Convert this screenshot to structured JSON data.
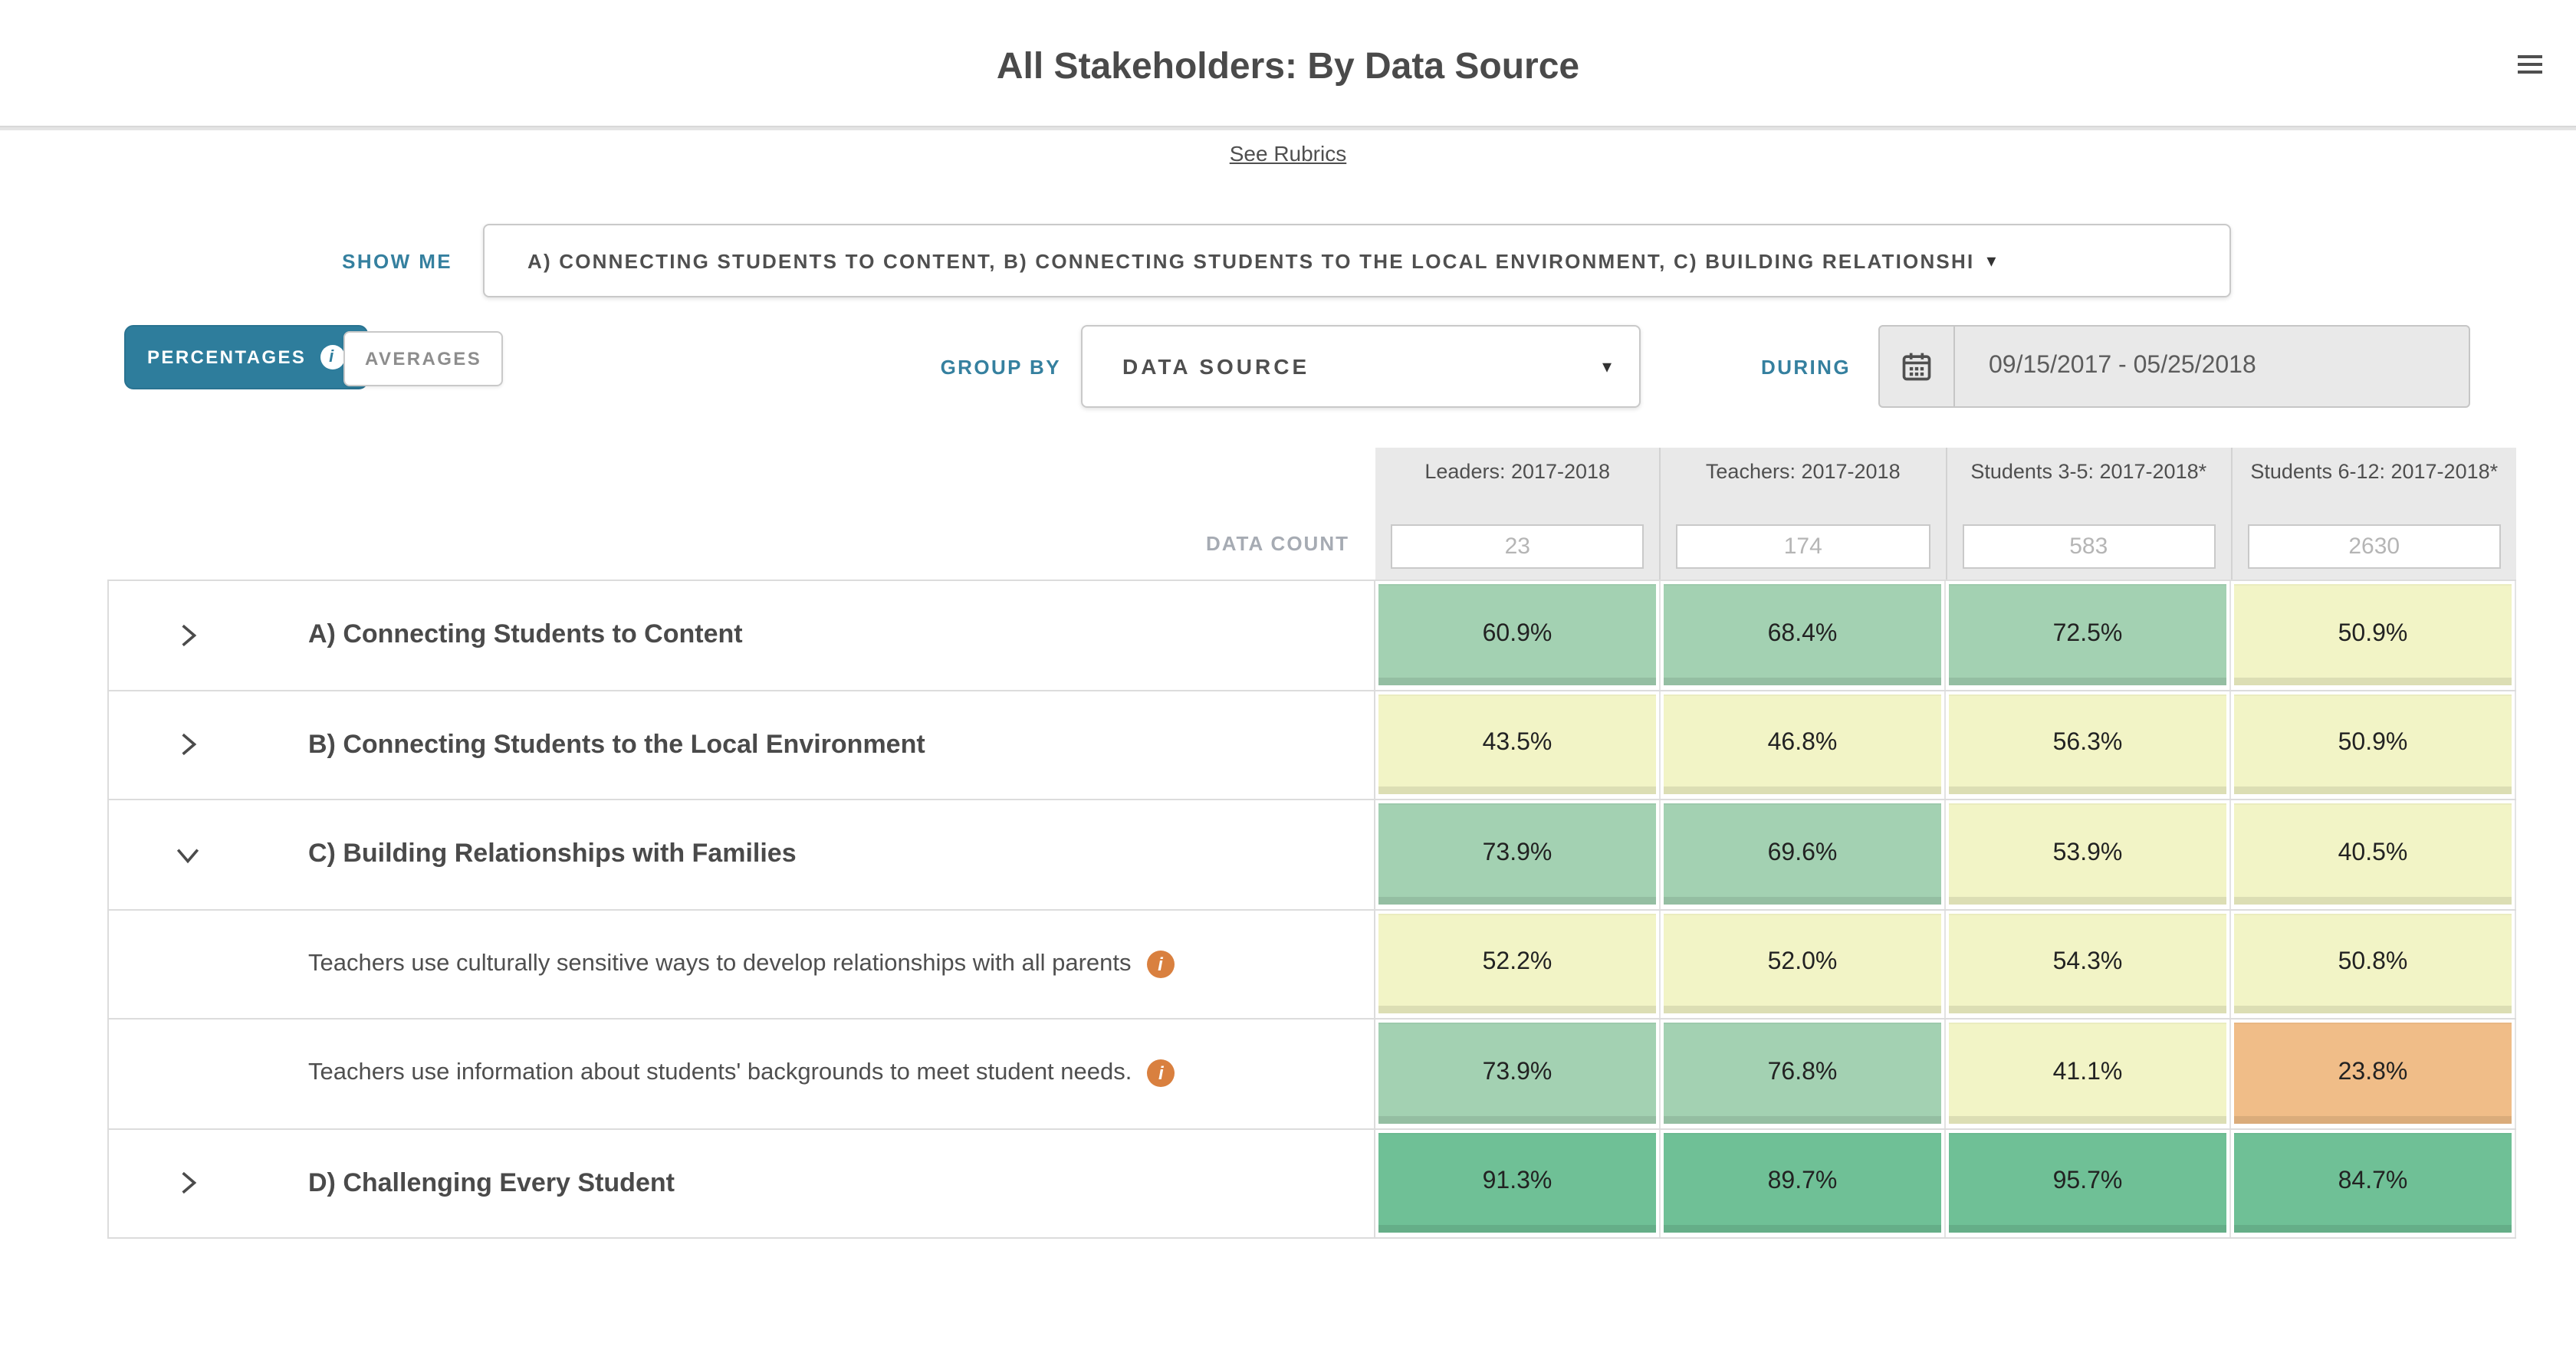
{
  "header": {
    "title": "All Stakeholders: By Data Source",
    "see_rubrics_label": "See Rubrics"
  },
  "controls": {
    "show_me_label": "SHOW ME",
    "show_me_value": "A) CONNECTING STUDENTS TO CONTENT, B) CONNECTING STUDENTS TO THE LOCAL ENVIRONMENT, C) BUILDING RELATIONSHI",
    "percentages_label": "PERCENTAGES",
    "averages_label": "AVERAGES",
    "group_by_label": "GROUP BY",
    "group_by_value": "DATA SOURCE",
    "during_label": "DURING",
    "during_value": "09/15/2017 - 05/25/2018"
  },
  "icons": {
    "caret": "▾",
    "info_glyph": "i"
  },
  "colors": {
    "green": "#a3d1b2",
    "dark_green": "#6fc096",
    "yellow": "#f2f4c6",
    "orange": "#f0bd88",
    "accent_teal": "#2e7d9c",
    "header_gray": "#e9e9e9"
  },
  "table": {
    "data_count_label": "DATA COUNT",
    "columns": [
      {
        "label": "Leaders: 2017-2018",
        "count": "23"
      },
      {
        "label": "Teachers: 2017-2018",
        "count": "174"
      },
      {
        "label": "Students 3-5: 2017-2018*",
        "count": "583"
      },
      {
        "label": "Students 6-12: 2017-2018*",
        "count": "2630"
      }
    ],
    "rows": [
      {
        "type": "group",
        "expanded": false,
        "label": "A) Connecting Students to Content",
        "values": [
          "60.9%",
          "68.4%",
          "72.5%",
          "50.9%"
        ],
        "colors": [
          "green",
          "green",
          "green",
          "yellow"
        ]
      },
      {
        "type": "group",
        "expanded": false,
        "label": "B) Connecting Students to the Local Environment",
        "values": [
          "43.5%",
          "46.8%",
          "56.3%",
          "50.9%"
        ],
        "colors": [
          "yellow",
          "yellow",
          "yellow",
          "yellow"
        ]
      },
      {
        "type": "group",
        "expanded": true,
        "label": "C) Building Relationships with Families",
        "values": [
          "73.9%",
          "69.6%",
          "53.9%",
          "40.5%"
        ],
        "colors": [
          "green",
          "green",
          "yellow",
          "yellow"
        ]
      },
      {
        "type": "sub",
        "info": true,
        "label": "Teachers use culturally sensitive ways to develop relationships with all parents",
        "values": [
          "52.2%",
          "52.0%",
          "54.3%",
          "50.8%"
        ],
        "colors": [
          "yellow",
          "yellow",
          "yellow",
          "yellow"
        ]
      },
      {
        "type": "sub",
        "info": true,
        "label": "Teachers use information about students' backgrounds to meet student needs.",
        "values": [
          "73.9%",
          "76.8%",
          "41.1%",
          "23.8%"
        ],
        "colors": [
          "green",
          "green",
          "yellow",
          "orange"
        ]
      },
      {
        "type": "group",
        "expanded": false,
        "label": "D) Challenging Every Student",
        "values": [
          "91.3%",
          "89.7%",
          "95.7%",
          "84.7%"
        ],
        "colors": [
          "dgreen",
          "dgreen",
          "dgreen",
          "dgreen"
        ]
      }
    ]
  }
}
